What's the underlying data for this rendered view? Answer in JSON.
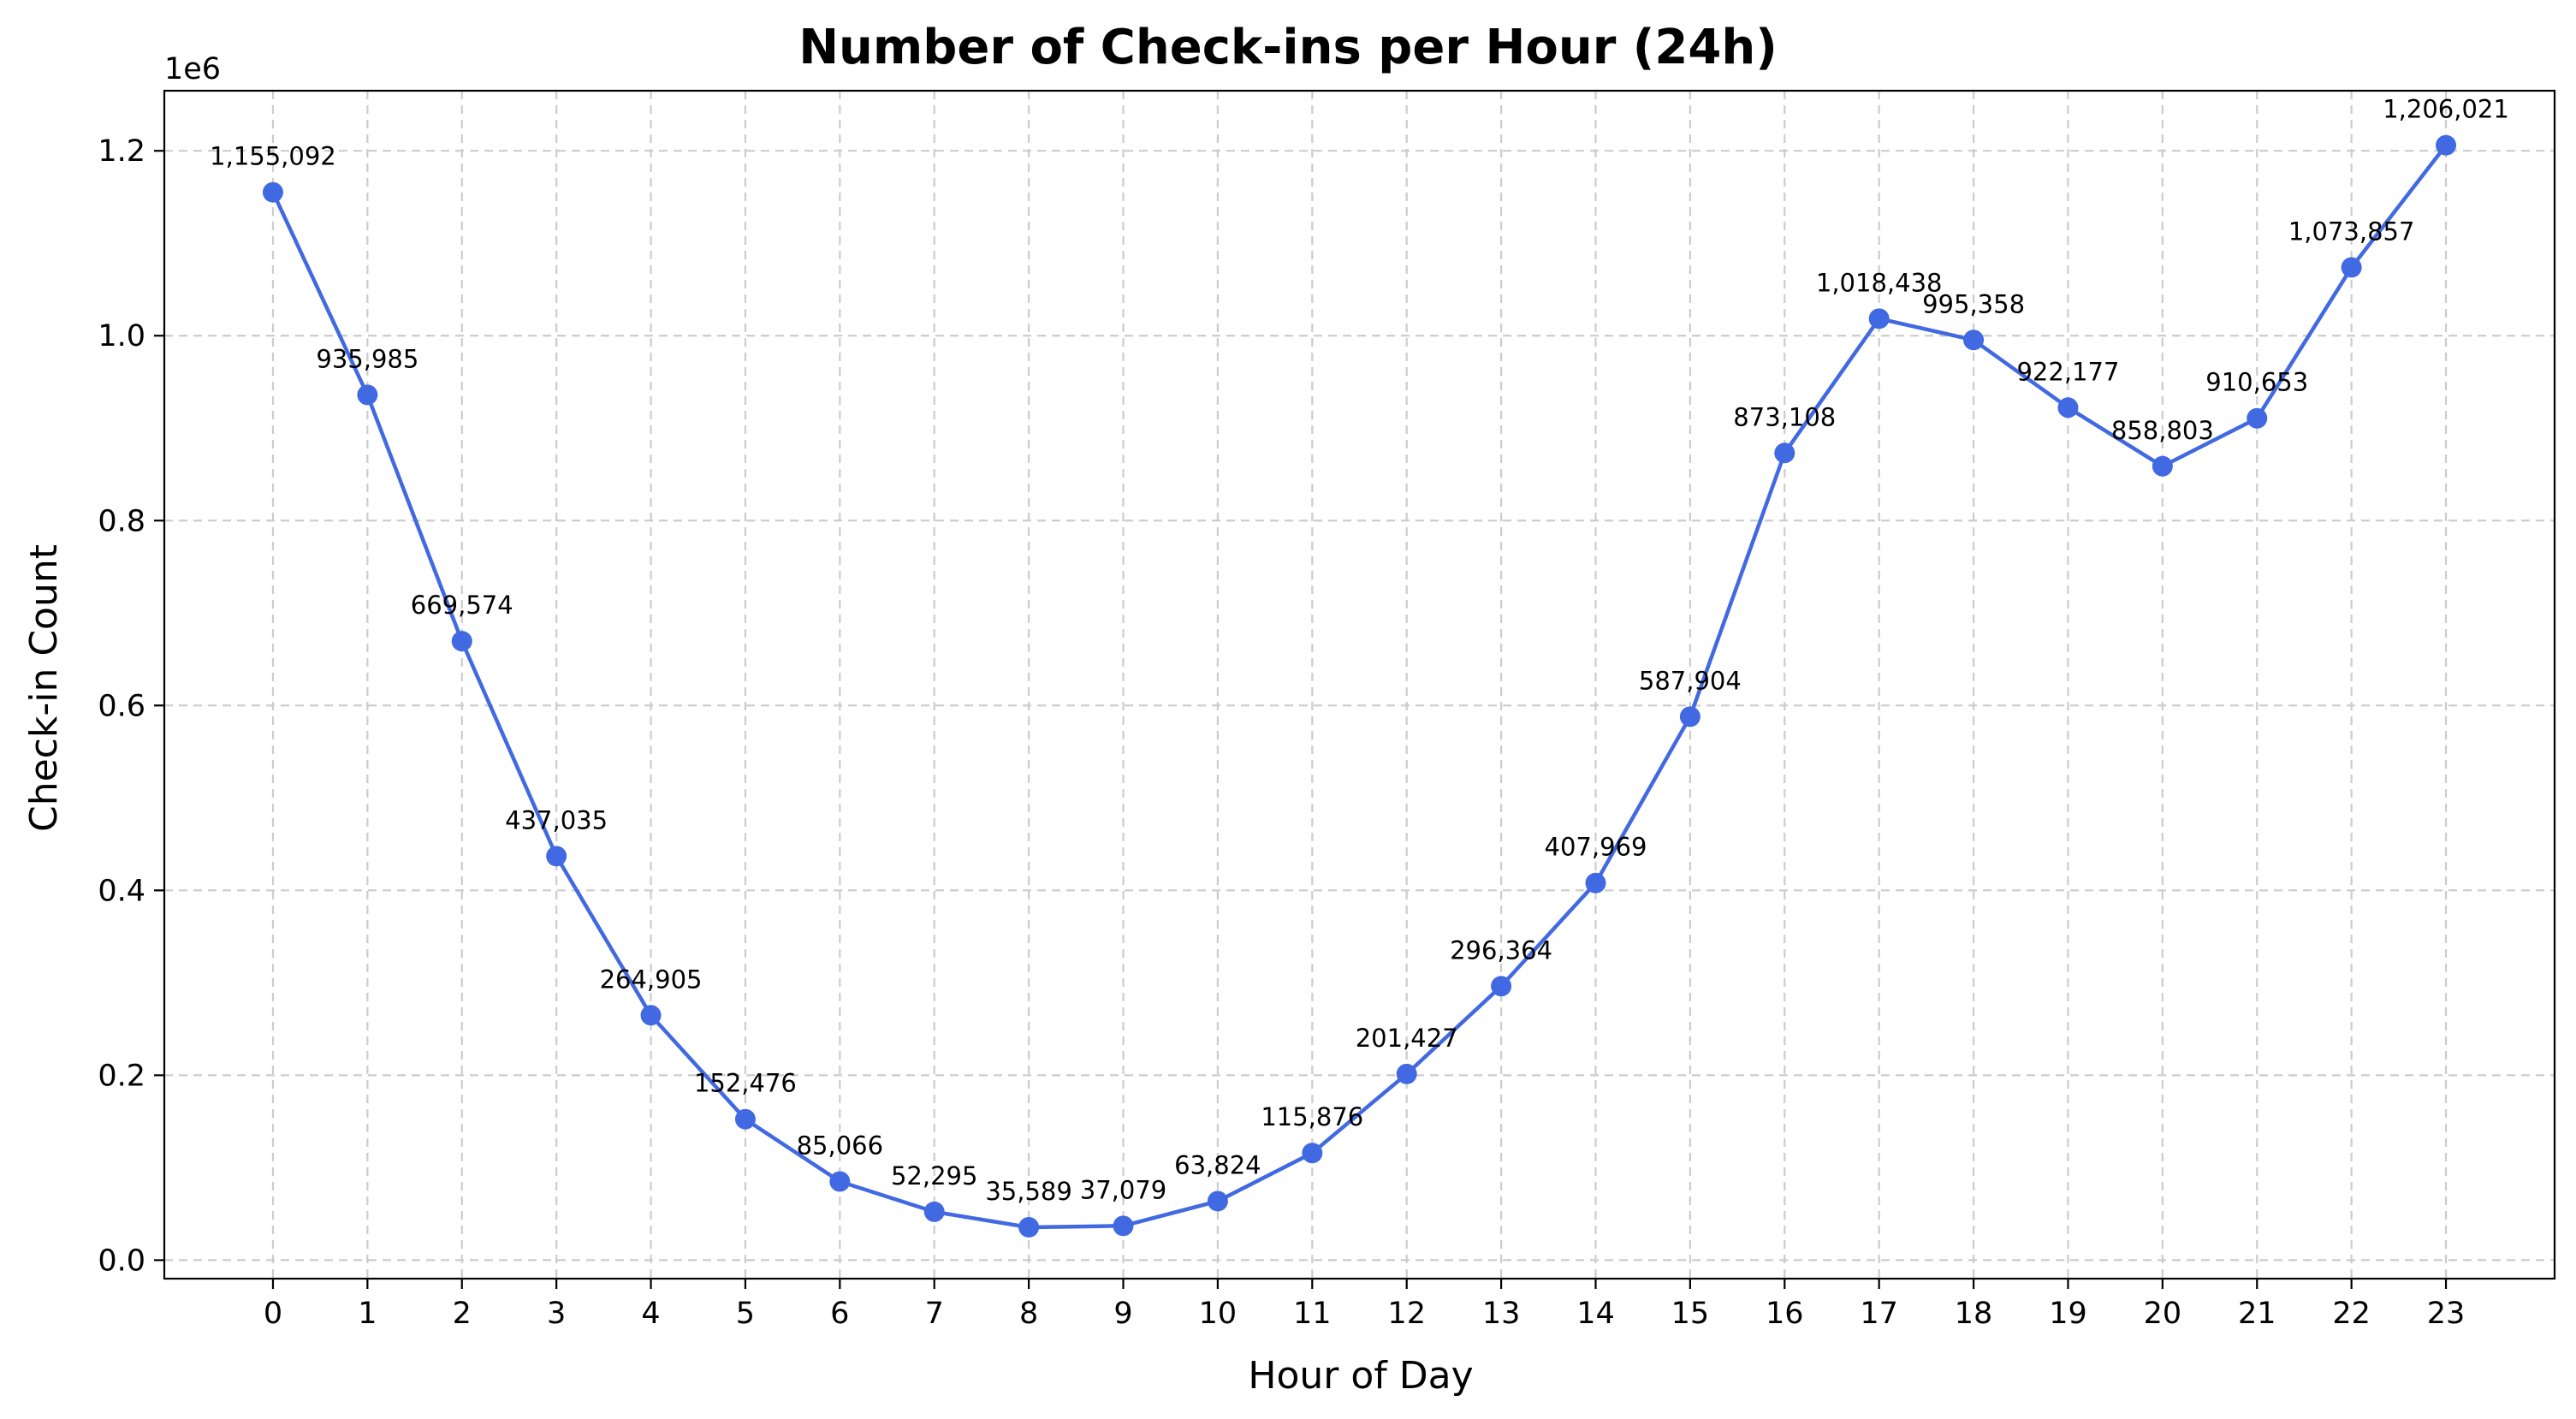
{
  "chart_data": {
    "type": "line",
    "title": "Number of Check-ins per Hour (24h)",
    "xlabel": "Hour of Day",
    "ylabel": "Check-in Count",
    "y_offset_label": "1e6",
    "x": [
      0,
      1,
      2,
      3,
      4,
      5,
      6,
      7,
      8,
      9,
      10,
      11,
      12,
      13,
      14,
      15,
      16,
      17,
      18,
      19,
      20,
      21,
      22,
      23
    ],
    "x_tick_labels": [
      "0",
      "1",
      "2",
      "3",
      "4",
      "5",
      "6",
      "7",
      "8",
      "9",
      "10",
      "11",
      "12",
      "13",
      "14",
      "15",
      "16",
      "17",
      "18",
      "19",
      "20",
      "21",
      "22",
      "23"
    ],
    "series": [
      {
        "values": [
          1155092,
          935985,
          669574,
          437035,
          264905,
          152476,
          85066,
          52295,
          35589,
          37079,
          63824,
          115876,
          201427,
          296364,
          407969,
          587904,
          873108,
          1018438,
          995358,
          922177,
          858803,
          910653,
          1073857,
          1206021
        ],
        "data_labels": [
          "1,155,092",
          "935,985",
          "669,574",
          "437,035",
          "264,905",
          "152,476",
          "85,066",
          "52,295",
          "35,589",
          "37,079",
          "63,824",
          "115,876",
          "201,427",
          "296,364",
          "407,969",
          "587,904",
          "873,108",
          "1,018,438",
          "995,358",
          "922,177",
          "858,803",
          "910,653",
          "1,073,857",
          "1,206,021"
        ],
        "color": "#4169e1",
        "marker": "circle"
      }
    ],
    "y_ticks": [
      0,
      200000,
      400000,
      600000,
      800000,
      1000000,
      1200000
    ],
    "y_tick_labels": [
      "0.0",
      "0.2",
      "0.4",
      "0.6",
      "0.8",
      "1.0",
      "1.2"
    ],
    "xlim": [
      -1.15,
      24.15
    ],
    "ylim": [
      -20000,
      1265000
    ],
    "grid": true,
    "legend": false
  }
}
